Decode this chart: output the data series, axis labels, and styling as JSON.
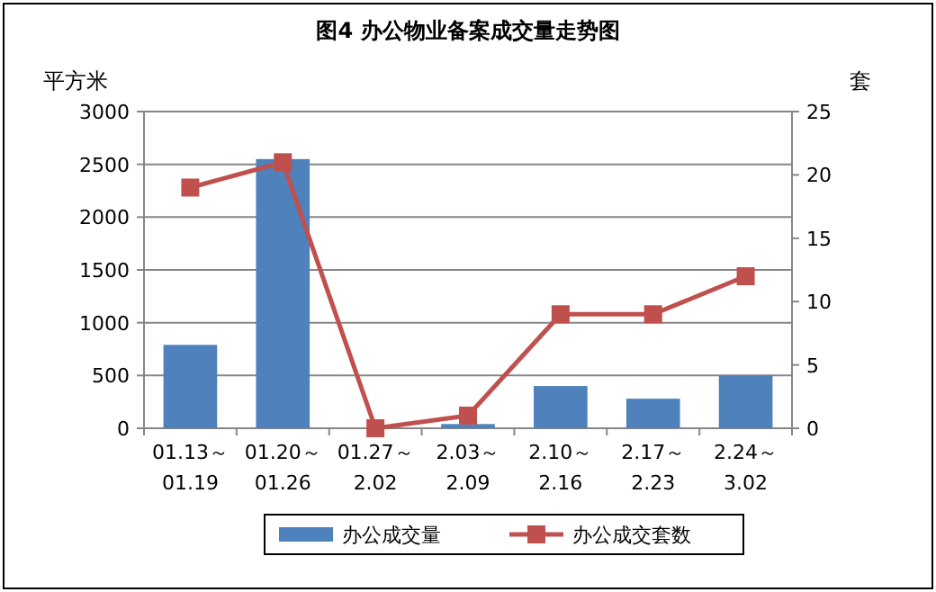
{
  "chart_data": {
    "type": "bar",
    "title": "图4  办公物业备案成交量走势图",
    "ylabel": "平方米",
    "y2label": "套",
    "categories": [
      "01.13～\n01.19",
      "01.20～\n01.26",
      "01.27～\n2.02",
      "2.03～\n2.09",
      "2.10～\n2.16",
      "2.17～\n2.23",
      "2.24～\n3.02"
    ],
    "series": [
      {
        "name": "办公成交量",
        "color": "#4f81bd",
        "values": [
          790,
          2550,
          0,
          40,
          400,
          280,
          500
        ]
      },
      {
        "name": "办公成交套数",
        "type": "line",
        "axis": "y2",
        "color": "#c0504d",
        "marker": "square",
        "values": [
          19,
          21,
          0,
          1,
          9,
          9,
          12
        ]
      }
    ],
    "ylim": [
      0,
      3000
    ],
    "yticks": [
      0,
      500,
      1000,
      1500,
      2000,
      2500,
      3000
    ],
    "y2lim": [
      0,
      25
    ],
    "y2ticks": [
      0,
      5,
      10,
      15,
      20,
      25
    ],
    "grid": "y",
    "legend": "bottom"
  }
}
